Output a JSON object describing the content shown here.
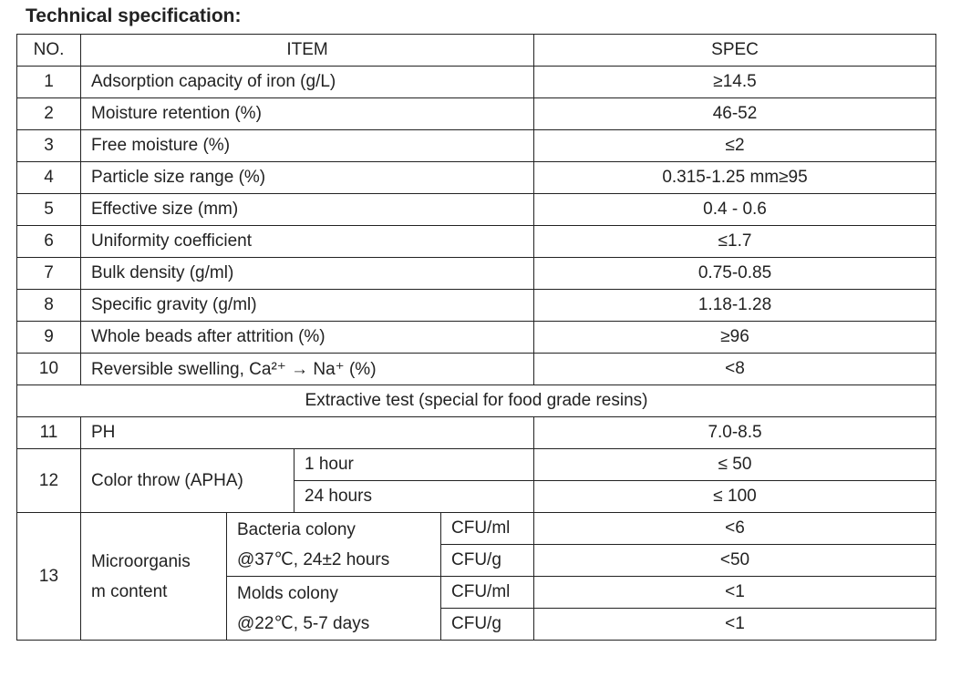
{
  "title": "Technical specification:",
  "table": {
    "header": [
      "NO.",
      "ITEM",
      "SPEC"
    ],
    "rows": [
      {
        "no": "1",
        "item": "Adsorption capacity of iron (g/L)",
        "spec": "≥14.5"
      },
      {
        "no": "2",
        "item": "Moisture retention (%)",
        "spec": "46-52"
      },
      {
        "no": "3",
        "item": "Free moisture (%)",
        "spec": "≤2"
      },
      {
        "no": "4",
        "item": "Particle size range (%)",
        "spec": "0.315-1.25 mm≥95"
      },
      {
        "no": "5",
        "item": "Effective size (mm)",
        "spec": "0.4 - 0.6"
      },
      {
        "no": "6",
        "item": "Uniformity coefficient",
        "spec": "≤1.7"
      },
      {
        "no": "7",
        "item": "Bulk density (g/ml)",
        "spec": "0.75-0.85"
      },
      {
        "no": "8",
        "item": "Specific gravity (g/ml)",
        "spec": "1.18-1.28"
      },
      {
        "no": "9",
        "item": "Whole beads after attrition (%)",
        "spec": "≥96"
      },
      {
        "no": "10",
        "item": "Reversible swelling, Ca²⁺ → Na⁺ (%)",
        "spec": "<8"
      }
    ],
    "section": "Extractive test (special for food grade resins)",
    "extractive_rows": [
      {
        "no": "11",
        "item": "PH",
        "spec": "7.0-8.5"
      },
      {
        "no": "12",
        "item": "Color throw (APHA)",
        "conditions": [
          {
            "condition": "1 hour",
            "spec": "≤ 50"
          },
          {
            "condition": "24 hours",
            "spec": "≤ 100"
          }
        ]
      },
      {
        "no": "13",
        "item": [
          "Microorganis",
          "m content"
        ],
        "groups": [
          {
            "name": [
              "Bacteria colony",
              "@37℃, 24±2 hours"
            ],
            "units": [
              {
                "unit": "CFU/ml",
                "spec": "<6"
              },
              {
                "unit": "CFU/g",
                "spec": "<50"
              }
            ]
          },
          {
            "name": [
              "Molds colony",
              "@22℃, 5-7 days"
            ],
            "units": [
              {
                "unit": "CFU/ml",
                "spec": "<1"
              },
              {
                "unit": "CFU/g",
                "spec": "<1"
              }
            ]
          }
        ]
      }
    ]
  }
}
